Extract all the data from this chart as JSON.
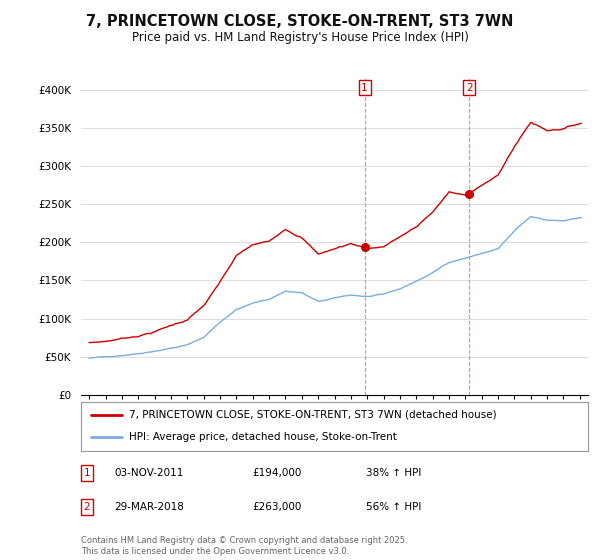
{
  "title": "7, PRINCETOWN CLOSE, STOKE-ON-TRENT, ST3 7WN",
  "subtitle": "Price paid vs. HM Land Registry's House Price Index (HPI)",
  "title_fontsize": 10.5,
  "subtitle_fontsize": 8.5,
  "background_color": "#ffffff",
  "plot_bg_color": "#ffffff",
  "grid_color": "#dddddd",
  "red_color": "#cc0000",
  "blue_color": "#7aade0",
  "dashed_color": "#cc8888",
  "yticks": [
    0,
    50000,
    100000,
    150000,
    200000,
    250000,
    300000,
    350000,
    400000
  ],
  "ytick_labels": [
    "£0",
    "£50K",
    "£100K",
    "£150K",
    "£200K",
    "£250K",
    "£300K",
    "£350K",
    "£400K"
  ],
  "xlim_start": 1994.5,
  "xlim_end": 2025.5,
  "ylim_min": 0,
  "ylim_max": 415000,
  "purchase1_year": 2011.84,
  "purchase1_price": 194000,
  "purchase1_date": "03-NOV-2011",
  "purchase1_pct": "38% ↑ HPI",
  "purchase2_year": 2018.24,
  "purchase2_price": 263000,
  "purchase2_date": "29-MAR-2018",
  "purchase2_pct": "56% ↑ HPI",
  "legend_line1": "7, PRINCETOWN CLOSE, STOKE-ON-TRENT, ST3 7WN (detached house)",
  "legend_line2": "HPI: Average price, detached house, Stoke-on-Trent",
  "footnote": "Contains HM Land Registry data © Crown copyright and database right 2025.\nThis data is licensed under the Open Government Licence v3.0."
}
